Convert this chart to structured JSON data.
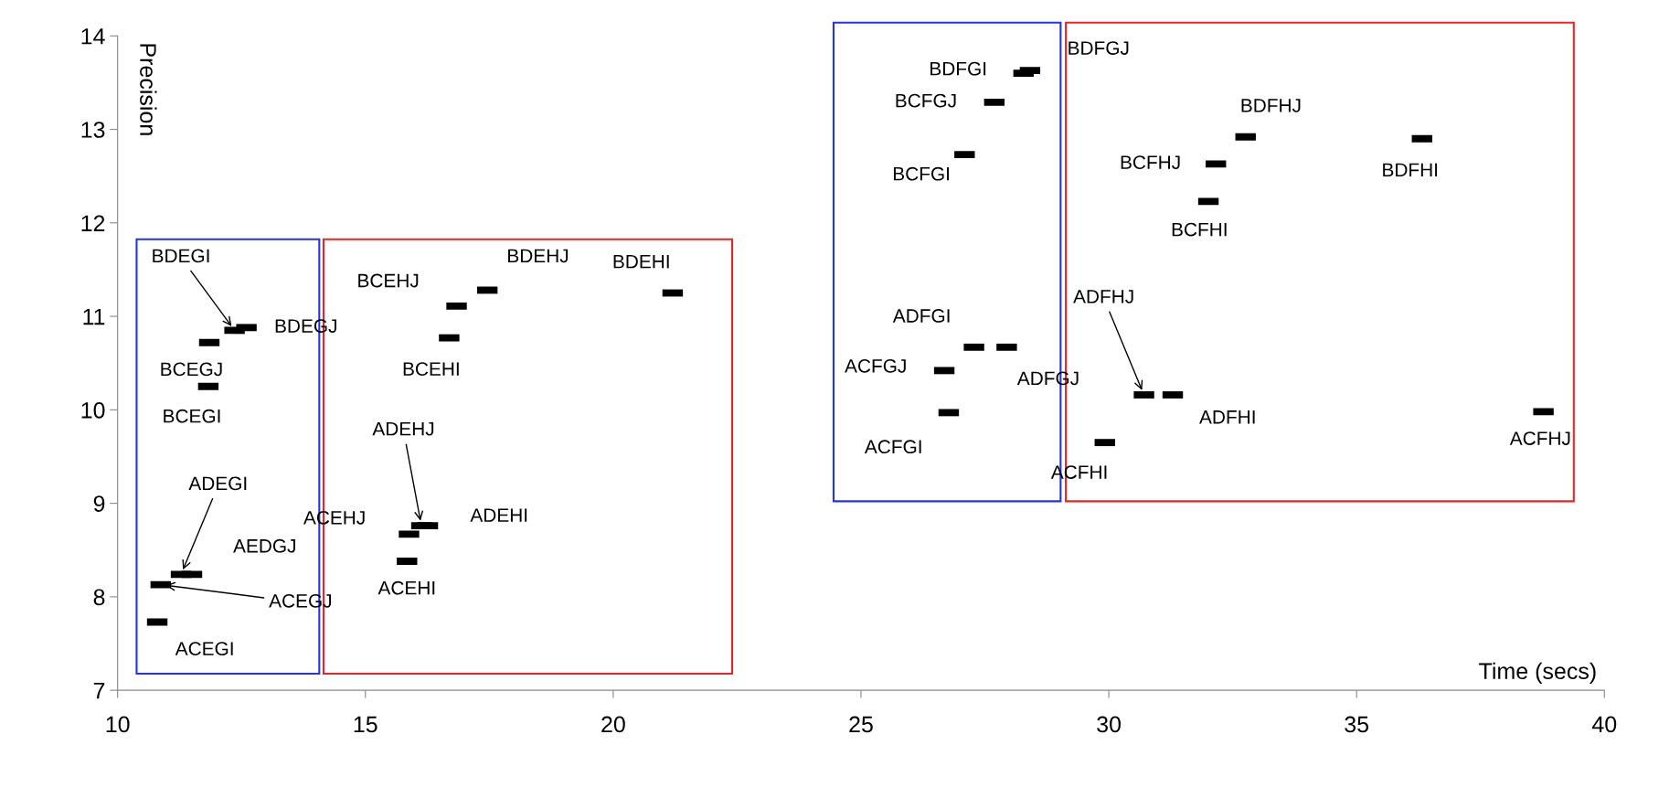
{
  "chart_data": {
    "type": "scatter",
    "xlabel": "Time (secs)",
    "ylabel": "Precision",
    "xlim": [
      10,
      40
    ],
    "xticks": [
      10,
      15,
      20,
      25,
      30,
      35,
      40
    ],
    "ylim": [
      7,
      14
    ],
    "yticks": [
      7,
      8,
      9,
      10,
      11,
      12,
      13,
      14
    ],
    "grid": false,
    "legend": false,
    "series": [
      {
        "marker": "square",
        "color": "#000000",
        "x": [
          10.8,
          10.87,
          11.28,
          11.5,
          11.83,
          11.85,
          12.36,
          12.6,
          15.84,
          15.88,
          16.13,
          16.26,
          16.69,
          16.84,
          17.46,
          21.2,
          26.77,
          26.68,
          27.28,
          27.94,
          27.09,
          27.69,
          28.28,
          28.41,
          29.92,
          30.71,
          31.29,
          32.01,
          32.16,
          32.76,
          36.32,
          38.77
        ],
        "values": [
          7.73,
          8.13,
          8.24,
          8.24,
          10.25,
          10.72,
          10.85,
          10.88,
          8.38,
          8.67,
          8.76,
          8.76,
          10.77,
          11.11,
          11.28,
          11.25,
          9.97,
          10.42,
          10.67,
          10.67,
          12.73,
          13.29,
          13.6,
          13.63,
          9.65,
          10.16,
          10.16,
          12.23,
          12.63,
          12.92,
          12.9,
          9.98
        ],
        "value_labels": [
          "ACEGI",
          "ACEGJ",
          "ADEGI",
          "AEDGJ",
          "BCEGI",
          "BCEGJ",
          "BDEGI",
          "BDEGJ",
          "ACEHI",
          "ACEHJ",
          "ADEHJ",
          "ADEHI",
          "BCEHI",
          "BCEHJ",
          "BDEHJ",
          "BDEHI",
          "ACFGI",
          "ACFGJ",
          "ADFGI",
          "ADFGJ",
          "BCFGI",
          "BCFGJ",
          "BDFGI",
          "BDFGJ",
          "ACFHI",
          "ADFHJ",
          "ADFHI",
          "BCFHI",
          "BCFHJ",
          "BDFHJ",
          "BDFHI",
          "ACFHJ"
        ]
      }
    ]
  }
}
